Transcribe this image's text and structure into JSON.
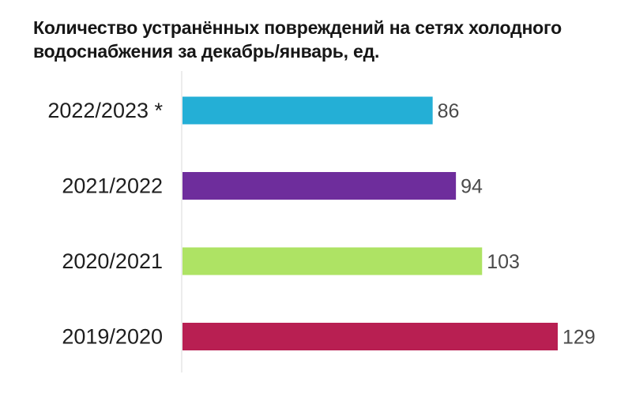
{
  "chart_data": {
    "type": "bar",
    "orientation": "horizontal",
    "title": "Количество устранённых повреждений на сетях холодного водоснабжения за декабрь/январь, ед.",
    "categories": [
      "2022/2023 *",
      "2021/2022",
      "2020/2021",
      "2019/2020"
    ],
    "values": [
      86,
      94,
      103,
      129
    ],
    "colors": [
      "#24afd6",
      "#6e2d9c",
      "#aee364",
      "#b81f52"
    ],
    "xlim": [
      0,
      129
    ],
    "grid": false,
    "legend": "none"
  }
}
